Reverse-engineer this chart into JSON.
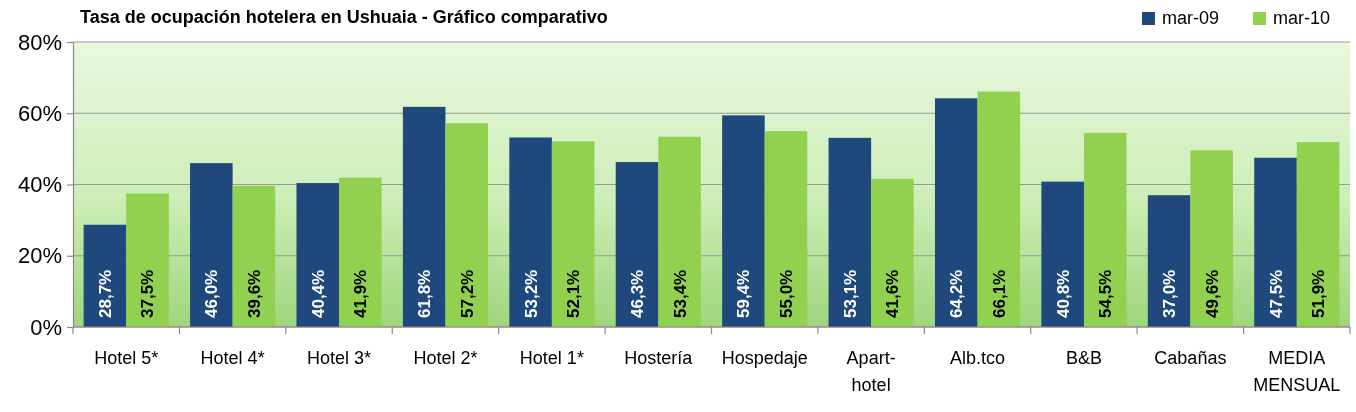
{
  "chart_data": {
    "type": "bar",
    "title": "Tasa de ocupación hotelera en Ushuaia - Gráfico comparativo",
    "categories": [
      "Hotel 5*",
      "Hotel 4*",
      "Hotel 3*",
      "Hotel 2*",
      "Hotel 1*",
      "Hostería",
      "Hospedaje",
      "Apart-hotel",
      "Alb.tco",
      "B&B",
      "Cabañas",
      "MEDIA MENSUAL"
    ],
    "series": [
      {
        "name": "mar-09",
        "color": "#1f497d",
        "values": [
          28.7,
          46.0,
          40.4,
          61.8,
          53.2,
          46.3,
          59.4,
          53.1,
          64.2,
          40.8,
          37.0,
          47.5
        ],
        "value_labels": [
          "28,7%",
          "46,0%",
          "40,4%",
          "61,8%",
          "53,2%",
          "46,3%",
          "59,4%",
          "53,1%",
          "64,2%",
          "40,8%",
          "37,0%",
          "47,5%"
        ]
      },
      {
        "name": "mar-10",
        "color": "#92d050",
        "values": [
          37.5,
          39.6,
          41.9,
          57.2,
          52.1,
          53.4,
          55.0,
          41.6,
          66.1,
          54.5,
          49.6,
          51.9
        ],
        "value_labels": [
          "37,5%",
          "39,6%",
          "41,9%",
          "57,2%",
          "52,1%",
          "53,4%",
          "55,0%",
          "41,6%",
          "66,1%",
          "54,5%",
          "49,6%",
          "51,9%"
        ]
      }
    ],
    "ylim": [
      0,
      80
    ],
    "yticks": [
      {
        "value": 0,
        "label": "0%"
      },
      {
        "value": 20,
        "label": "20%"
      },
      {
        "value": 40,
        "label": "40%"
      },
      {
        "value": 60,
        "label": "60%"
      },
      {
        "value": 80,
        "label": "80%"
      }
    ],
    "grid": "y",
    "legend": "top right"
  }
}
